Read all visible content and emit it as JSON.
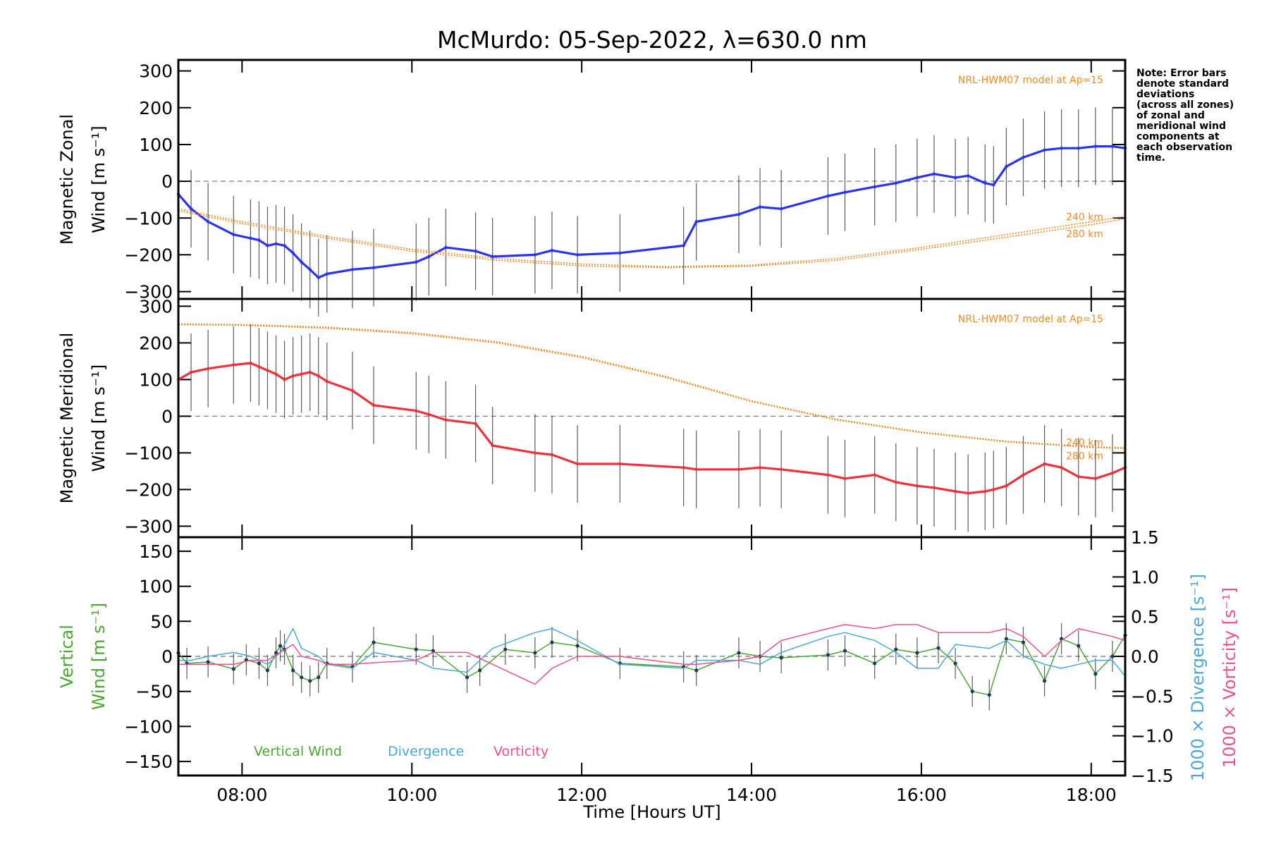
{
  "chart_data": {
    "type": "line",
    "title": "McMurdo: 05-Sep-2022, λ=630.0 nm",
    "xlabel": "Time [Hours UT]",
    "x_unit": "hours UT",
    "xlim": [
      7.25,
      18.4
    ],
    "x_ticks": [
      8,
      10,
      12,
      14,
      16,
      18
    ],
    "x_tick_labels": [
      "08:00",
      "10:00",
      "12:00",
      "14:00",
      "16:00",
      "18:00"
    ],
    "note": [
      "Note: Error bars",
      "denote standard",
      "deviations",
      "(across all zones)",
      "of zonal and",
      "meridional wind",
      "components at",
      "each observation",
      "time."
    ],
    "colors": {
      "zonal": "#2a34f0",
      "meridional": "#f0303a",
      "model": "#f08a24",
      "vertical": "#4aa832",
      "divergence": "#4aa8d8",
      "vorticity": "#f0508a",
      "errorbar": "#333333",
      "zero_line": "#888888"
    },
    "panels": [
      {
        "id": "zonal",
        "ylabel_line1": "Magnetic Zonal",
        "ylabel_line2": "Wind [m s⁻¹]",
        "ylim": [
          -320,
          330
        ],
        "y_ticks": [
          -300,
          -200,
          -100,
          0,
          100,
          200,
          300
        ],
        "y_tick_labels": [
          "−300",
          "−200",
          "−100",
          "0",
          "100",
          "200",
          "300"
        ],
        "model_label": "NRL-HWM07 model at Ap=15",
        "model_alt_labels": [
          "240 km",
          "280 km"
        ],
        "series": [
          {
            "name": "Zonal wind",
            "color": "#2a34f0",
            "x": [
              7.25,
              7.4,
              7.6,
              7.9,
              8.1,
              8.2,
              8.3,
              8.4,
              8.5,
              8.6,
              8.7,
              8.8,
              8.9,
              9.0,
              9.3,
              9.55,
              10.05,
              10.2,
              10.4,
              10.75,
              10.95,
              11.45,
              11.65,
              11.95,
              12.45,
              13.2,
              13.35,
              13.85,
              14.1,
              14.35,
              14.9,
              15.1,
              15.45,
              15.7,
              15.95,
              16.15,
              16.4,
              16.55,
              16.75,
              16.85,
              17.0,
              17.2,
              17.45,
              17.65,
              17.85,
              18.05,
              18.25,
              18.4
            ],
            "values": [
              -35,
              -75,
              -110,
              -145,
              -155,
              -160,
              -175,
              -170,
              -175,
              -195,
              -220,
              -240,
              -262,
              -252,
              -240,
              -235,
              -220,
              -205,
              -180,
              -190,
              -205,
              -200,
              -188,
              -200,
              -195,
              -175,
              -110,
              -90,
              -70,
              -75,
              -40,
              -30,
              -15,
              -5,
              10,
              20,
              10,
              15,
              -5,
              -10,
              40,
              65,
              85,
              90,
              90,
              95,
              95,
              90
            ]
          },
          {
            "name": "NRL-HWM07 240 km",
            "color": "#f08a24",
            "dashed": true,
            "x": [
              7.25,
              8.0,
              9.0,
              10.0,
              11.0,
              12.0,
              13.0,
              14.0,
              15.0,
              16.0,
              17.0,
              18.0,
              18.4
            ],
            "values": [
              -75,
              -110,
              -150,
              -185,
              -210,
              -225,
              -232,
              -228,
              -210,
              -180,
              -145,
              -110,
              -95
            ]
          },
          {
            "name": "NRL-HWM07 280 km",
            "color": "#f08a24",
            "dashed": true,
            "x": [
              7.25,
              8.0,
              9.0,
              10.0,
              11.0,
              12.0,
              13.0,
              14.0,
              15.0,
              16.0,
              17.0,
              18.0,
              18.4
            ],
            "values": [
              -80,
              -115,
              -155,
              -190,
              -215,
              -230,
              -235,
              -231,
              -215,
              -185,
              -152,
              -118,
              -102
            ]
          }
        ]
      },
      {
        "id": "meridional",
        "ylabel_line1": "Magnetic Meridional",
        "ylabel_line2": "Wind [m s⁻¹]",
        "ylim": [
          -330,
          320
        ],
        "y_ticks": [
          -300,
          -200,
          -100,
          0,
          100,
          200,
          300
        ],
        "y_tick_labels": [
          "−300",
          "−200",
          "−100",
          "0",
          "100",
          "200",
          "300"
        ],
        "model_label": "NRL-HWM07 model at Ap=15",
        "model_alt_labels": [
          "240 km",
          "280 km"
        ],
        "series": [
          {
            "name": "Meridional wind",
            "color": "#f0303a",
            "x": [
              7.25,
              7.4,
              7.6,
              7.9,
              8.1,
              8.2,
              8.3,
              8.4,
              8.5,
              8.6,
              8.7,
              8.8,
              8.9,
              9.0,
              9.3,
              9.55,
              10.05,
              10.2,
              10.4,
              10.75,
              10.95,
              11.45,
              11.65,
              11.95,
              12.45,
              13.2,
              13.35,
              13.85,
              14.1,
              14.35,
              14.9,
              15.1,
              15.45,
              15.7,
              15.95,
              16.15,
              16.4,
              16.55,
              16.75,
              16.85,
              17.0,
              17.2,
              17.45,
              17.65,
              17.85,
              18.05,
              18.25,
              18.4
            ],
            "values": [
              100,
              120,
              130,
              140,
              145,
              135,
              125,
              115,
              100,
              110,
              115,
              120,
              110,
              95,
              70,
              30,
              15,
              5,
              -10,
              -20,
              -80,
              -100,
              -105,
              -130,
              -130,
              -140,
              -145,
              -145,
              -140,
              -145,
              -160,
              -170,
              -160,
              -180,
              -190,
              -195,
              -205,
              -210,
              -205,
              -200,
              -190,
              -160,
              -130,
              -140,
              -165,
              -170,
              -155,
              -140
            ]
          },
          {
            "name": "NRL-HWM07 240 km",
            "color": "#f08a24",
            "dashed": true,
            "x": [
              7.25,
              8.0,
              9.0,
              10.0,
              11.0,
              12.0,
              13.0,
              14.0,
              15.0,
              16.0,
              17.0,
              18.0,
              18.4
            ],
            "values": [
              250,
              248,
              240,
              225,
              200,
              160,
              105,
              40,
              -10,
              -45,
              -70,
              -85,
              -88
            ]
          },
          {
            "name": "NRL-HWM07 280 km",
            "color": "#f08a24",
            "dashed": true,
            "x": [
              7.25,
              8.0,
              9.0,
              10.0,
              11.0,
              12.0,
              13.0,
              14.0,
              15.0,
              16.0,
              17.0,
              18.0,
              18.4
            ],
            "values": [
              252,
              250,
              243,
              228,
              203,
              163,
              108,
              42,
              -8,
              -43,
              -68,
              -83,
              -86
            ]
          }
        ]
      },
      {
        "id": "vertical",
        "ylabel_line1": "Vertical",
        "ylabel_line2": "Wind [m s⁻¹]",
        "ylim": [
          -170,
          170
        ],
        "y_ticks": [
          -150,
          -100,
          -50,
          0,
          50,
          100,
          150
        ],
        "y_tick_labels": [
          "−150",
          "−100",
          "−50",
          "0",
          "50",
          "100",
          "150"
        ],
        "y2_ticks": [
          -1.5,
          -1.0,
          -0.5,
          0.0,
          0.5,
          1.0,
          1.5
        ],
        "y2_tick_labels": [
          "−1.5",
          "−1.0",
          "−0.5",
          "0.0",
          "0.5",
          "1.0",
          "1.5"
        ],
        "y2lim": [
          -1.5,
          1.5
        ],
        "y2_label_divergence": "1000 × Divergence [s⁻¹]",
        "y2_label_vorticity": "1000 × Vorticity [s⁻¹]",
        "legend": [
          "Vertical Wind",
          "Divergence",
          "Vorticity"
        ],
        "series": [
          {
            "name": "Vertical Wind",
            "color": "#4aa832",
            "axis": "left",
            "x": [
              7.25,
              7.35,
              7.6,
              7.9,
              8.05,
              8.2,
              8.3,
              8.4,
              8.45,
              8.5,
              8.6,
              8.7,
              8.8,
              8.9,
              9.0,
              9.3,
              9.55,
              10.05,
              10.25,
              10.65,
              10.8,
              11.1,
              11.45,
              11.65,
              11.95,
              12.45,
              13.2,
              13.35,
              13.85,
              14.1,
              14.35,
              14.9,
              15.1,
              15.45,
              15.7,
              15.95,
              16.2,
              16.4,
              16.6,
              16.8,
              17.0,
              17.2,
              17.45,
              17.65,
              17.85,
              18.05,
              18.25,
              18.4
            ],
            "values": [
              5,
              -10,
              -8,
              -18,
              -5,
              -10,
              -20,
              5,
              15,
              10,
              -20,
              -30,
              -35,
              -30,
              -10,
              -15,
              20,
              10,
              8,
              -30,
              -20,
              10,
              5,
              20,
              15,
              -10,
              -15,
              -20,
              5,
              0,
              -2,
              2,
              8,
              -10,
              10,
              5,
              12,
              -10,
              -50,
              -55,
              25,
              20,
              -35,
              25,
              15,
              -25,
              0,
              30
            ]
          },
          {
            "name": "Divergence",
            "color": "#4aa8d8",
            "axis": "right",
            "x": [
              7.25,
              7.4,
              7.6,
              7.9,
              8.1,
              8.3,
              8.45,
              8.6,
              8.7,
              8.9,
              9.0,
              9.3,
              9.55,
              10.05,
              10.25,
              10.65,
              10.95,
              11.45,
              11.65,
              11.95,
              12.45,
              13.2,
              13.35,
              13.85,
              14.1,
              14.35,
              14.9,
              15.1,
              15.45,
              15.7,
              15.95,
              16.2,
              16.4,
              16.8,
              17.0,
              17.2,
              17.45,
              17.65,
              17.85,
              18.05,
              18.25,
              18.4
            ],
            "values": [
              -0.05,
              -0.05,
              0.0,
              0.05,
              0.0,
              -0.1,
              0.05,
              0.35,
              0.1,
              0.0,
              -0.1,
              -0.15,
              0.05,
              -0.05,
              -0.15,
              -0.2,
              0.1,
              0.3,
              0.35,
              0.2,
              -0.1,
              -0.15,
              -0.05,
              -0.05,
              -0.1,
              0.05,
              0.25,
              0.3,
              0.2,
              0.05,
              -0.15,
              -0.15,
              0.15,
              0.1,
              0.2,
              0.0,
              -0.1,
              -0.15,
              -0.1,
              -0.05,
              -0.05,
              -0.25
            ]
          },
          {
            "name": "Vorticity",
            "color": "#f0508a",
            "axis": "right",
            "x": [
              7.25,
              7.4,
              7.6,
              7.9,
              8.1,
              8.3,
              8.45,
              8.6,
              8.7,
              8.9,
              9.0,
              9.3,
              9.55,
              10.05,
              10.25,
              10.65,
              10.95,
              11.45,
              11.65,
              11.95,
              12.45,
              13.2,
              13.35,
              13.85,
              14.1,
              14.35,
              14.9,
              15.1,
              15.45,
              15.7,
              15.95,
              16.2,
              16.4,
              16.8,
              17.0,
              17.2,
              17.45,
              17.65,
              17.85,
              18.05,
              18.25,
              18.4
            ],
            "values": [
              -0.1,
              -0.1,
              -0.1,
              -0.1,
              -0.05,
              -0.05,
              0.05,
              0.15,
              0.0,
              -0.05,
              -0.1,
              -0.1,
              -0.08,
              -0.05,
              0.05,
              0.05,
              -0.1,
              -0.35,
              -0.15,
              0.0,
              0.0,
              -0.1,
              -0.1,
              -0.05,
              0.0,
              0.2,
              0.35,
              0.4,
              0.35,
              0.4,
              0.4,
              0.3,
              0.3,
              0.3,
              0.35,
              0.25,
              0.0,
              0.2,
              0.35,
              0.3,
              0.25,
              0.2
            ]
          }
        ]
      }
    ]
  }
}
